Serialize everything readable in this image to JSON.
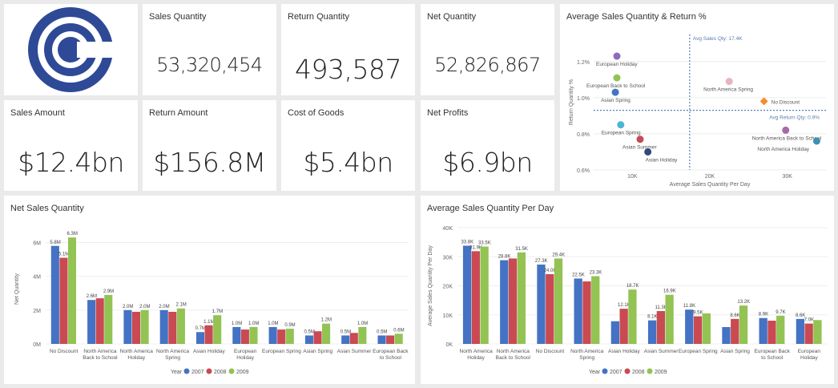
{
  "cards": {
    "sales_quantity": {
      "label": "Sales Quantity",
      "value": "53,320,454"
    },
    "return_quantity": {
      "label": "Return Quantity",
      "value": "493,587"
    },
    "net_quantity": {
      "label": "Net Quantity",
      "value": "52,826,867"
    },
    "sales_amount": {
      "label": "Sales Amount",
      "value": "$12.4bn"
    },
    "return_amount": {
      "label": "Return Amount",
      "value": "$156.8M"
    },
    "cost_of_goods": {
      "label": "Cost of Goods",
      "value": "$5.4bn"
    },
    "net_profits": {
      "label": "Net Profits",
      "value": "$6.9bn"
    }
  },
  "logo": {
    "icon": "contoso-c-logo-icon",
    "color": "#2e4a97"
  },
  "colors": {
    "y2007": "#4472c4",
    "y2008": "#c94a52",
    "y2009": "#92c353"
  },
  "chart_data": [
    {
      "id": "scatter",
      "type": "scatter",
      "title": "Average Sales Quantity & Return %",
      "xlabel": "Average Sales Quantity Per Day",
      "ylabel": "Return Quantity %",
      "xlim": [
        5000,
        35000
      ],
      "ylim": [
        0.6,
        1.35
      ],
      "xticks": [
        {
          "v": 10000,
          "label": "10K"
        },
        {
          "v": 20000,
          "label": "20K"
        },
        {
          "v": 30000,
          "label": "30K"
        }
      ],
      "yticks": [
        {
          "v": 0.6,
          "label": "0.6%"
        },
        {
          "v": 0.8,
          "label": "0.8%"
        },
        {
          "v": 1.0,
          "label": "1.0%"
        },
        {
          "v": 1.2,
          "label": "1.2%"
        }
      ],
      "ref_x": {
        "value": 17400,
        "label": "Avg Sales Qty: 17.4K"
      },
      "ref_y": {
        "value": 0.93,
        "label": "Avg Return Qty: 0.9%"
      },
      "points": [
        {
          "name": "European Holiday",
          "x": 8000,
          "y": 1.23,
          "color": "#8e6bbf"
        },
        {
          "name": "European Back to School",
          "x": 8000,
          "y": 1.11,
          "color": "#92c353"
        },
        {
          "name": "Asian Spring",
          "x": 7800,
          "y": 1.03,
          "color": "#4472c4"
        },
        {
          "name": "North America Spring",
          "x": 22500,
          "y": 1.09,
          "color": "#e8b4bf"
        },
        {
          "name": "No Discount",
          "x": 27000,
          "y": 0.98,
          "color": "#f28e2b"
        },
        {
          "name": "European Spring",
          "x": 8500,
          "y": 0.85,
          "color": "#4cb5d6"
        },
        {
          "name": "Asian Summer",
          "x": 11000,
          "y": 0.77,
          "color": "#c94a52"
        },
        {
          "name": "Asian Holiday",
          "x": 12000,
          "y": 0.7,
          "color": "#2e4a7a"
        },
        {
          "name": "North America Back to School",
          "x": 29800,
          "y": 0.82,
          "color": "#a66aa8"
        },
        {
          "name": "North America Holiday",
          "x": 33800,
          "y": 0.76,
          "color": "#3e8fb0"
        }
      ]
    },
    {
      "id": "net-sales",
      "type": "bar",
      "title": "Net Sales Quantity",
      "xlabel": "",
      "ylabel": "Net Quantity",
      "ylim": [
        0,
        6.5
      ],
      "yticks": [
        {
          "v": 0,
          "label": "0M"
        },
        {
          "v": 2,
          "label": "2M"
        },
        {
          "v": 4,
          "label": "4M"
        },
        {
          "v": 6,
          "label": "6M"
        }
      ],
      "categories": [
        "No Discount",
        "North America Back to School",
        "North America Holiday",
        "North America Spring",
        "Asian Holiday",
        "European Holiday",
        "European Spring",
        "Asian Spring",
        "Asian Summer",
        "European Back to School"
      ],
      "series": [
        {
          "name": "2007",
          "values": [
            5.8,
            2.6,
            2.0,
            2.0,
            0.7,
            1.0,
            1.0,
            0.5,
            0.5,
            0.5
          ],
          "labels": [
            "5.8M",
            "2.6M",
            "2.0M",
            "2.0M",
            "0.7M",
            "1.0M",
            "1.0M",
            "0.5M",
            "0.5M",
            "0.5M"
          ]
        },
        {
          "name": "2008",
          "values": [
            5.1,
            2.7,
            1.9,
            1.9,
            1.1,
            0.85,
            0.85,
            0.75,
            0.65,
            0.5
          ],
          "labels": [
            "5.1M",
            "",
            "",
            "",
            "1.1M",
            "",
            "",
            "",
            "",
            ""
          ]
        },
        {
          "name": "2009",
          "values": [
            6.3,
            2.9,
            2.0,
            2.1,
            1.7,
            1.0,
            0.9,
            1.2,
            1.0,
            0.6
          ],
          "labels": [
            "6.3M",
            "2.9M",
            "2.0M",
            "2.1M",
            "1.7M",
            "1.0M",
            "0.9M",
            "1.2M",
            "1.0M",
            "0.6M"
          ]
        }
      ],
      "legend_title": "Year",
      "legend_position": "bottom"
    },
    {
      "id": "avg-sales",
      "type": "bar",
      "title": "Average Sales Quantity Per Day",
      "xlabel": "",
      "ylabel": "Average Sales Quantity Per Day",
      "ylim": [
        0,
        40
      ],
      "yticks": [
        {
          "v": 0,
          "label": "0K"
        },
        {
          "v": 10,
          "label": "10K"
        },
        {
          "v": 20,
          "label": "20K"
        },
        {
          "v": 30,
          "label": "30K"
        },
        {
          "v": 40,
          "label": "40K"
        }
      ],
      "categories": [
        "North America Holiday",
        "North America Back to School",
        "No Discount",
        "North America Spring",
        "Asian Holiday",
        "Asian Summer",
        "European Spring",
        "Asian Spring",
        "European Back to School",
        "European Holiday"
      ],
      "series": [
        {
          "name": "2007",
          "values": [
            33.8,
            28.8,
            27.3,
            22.5,
            7.8,
            8.1,
            11.8,
            5.8,
            8.9,
            8.6
          ],
          "labels": [
            "33.8K",
            "28.8K",
            "27.3K",
            "22.5K",
            "",
            "8.1K",
            "11.8K",
            "",
            "8.9K",
            "8.6K"
          ]
        },
        {
          "name": "2008",
          "values": [
            31.9,
            29.4,
            24.0,
            21.5,
            12.1,
            11.3,
            9.5,
            8.6,
            8.0,
            7.0
          ],
          "labels": [
            "31.9K",
            "",
            "24.0K",
            "",
            "12.1K",
            "11.3K",
            "9.5K",
            "8.6K",
            "",
            "7.0K"
          ]
        },
        {
          "name": "2009",
          "values": [
            33.5,
            31.5,
            29.4,
            23.3,
            18.7,
            16.9,
            10.5,
            13.2,
            9.7,
            8.2
          ],
          "labels": [
            "33.5K",
            "31.5K",
            "29.4K",
            "23.3K",
            "18.7K",
            "16.9K",
            "",
            "13.2K",
            "9.7K",
            ""
          ]
        }
      ],
      "legend_title": "Year",
      "legend_position": "bottom"
    }
  ]
}
